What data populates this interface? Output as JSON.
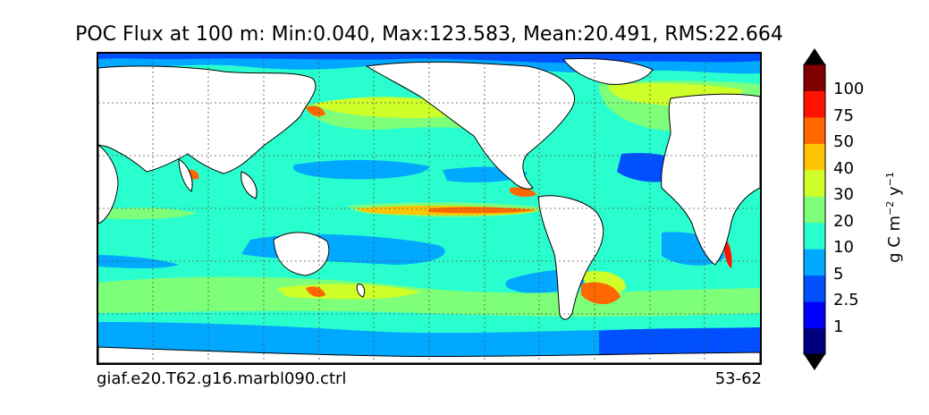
{
  "title": "POC Flux at 100 m: Min:0.040, Max:123.583, Mean:20.491, RMS:22.664",
  "footer_left": "giaf.e20.T62.g16.marbl090.ctrl",
  "footer_right": "53-62",
  "colorbar": {
    "units_html": "g C m<sup style=\"font-size:11px\">−2</sup> y<sup style=\"font-size:11px\">−1</sup>",
    "levels": [
      {
        "label": "1",
        "color": "#0000ff"
      },
      {
        "label": "2.5",
        "color": "#0050ff"
      },
      {
        "label": "5",
        "color": "#00a8ff"
      },
      {
        "label": "10",
        "color": "#29ffce"
      },
      {
        "label": "20",
        "color": "#7dff7a"
      },
      {
        "label": "30",
        "color": "#ceff29"
      },
      {
        "label": "40",
        "color": "#ffc400"
      },
      {
        "label": "50",
        "color": "#ff6800"
      },
      {
        "label": "75",
        "color": "#ff1300"
      },
      {
        "label": "100",
        "color": "#800000"
      }
    ],
    "bottom_color": "#00007f",
    "extend": "both"
  },
  "map": {
    "grid": "dashed",
    "background_value_color": "#29ffce",
    "land_color": "#ffffff"
  }
}
